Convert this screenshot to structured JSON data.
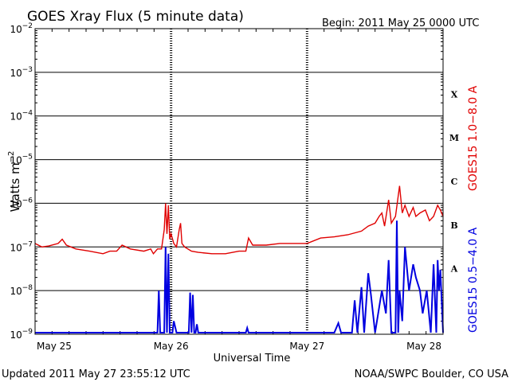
{
  "title": "GOES Xray Flux (5 minute data)",
  "begin_label": "Begin:  2011 May 25 0000 UTC",
  "footer_left": "Updated 2011 May 27 23:55:12 UTC",
  "footer_right": "NOAA/SWPC Boulder, CO USA",
  "colors": {
    "long": "#e00000",
    "short": "#0000e0",
    "axis": "#000000"
  },
  "chart_data": {
    "type": "line",
    "xlabel": "Universal Time",
    "ylabel_base": "Watts m",
    "ylabel_exp": "−2",
    "y_scale": "log",
    "ylim": [
      1e-09,
      0.01
    ],
    "y_ticks": [
      {
        "base": "10",
        "exp": "−2"
      },
      {
        "base": "10",
        "exp": "−3"
      },
      {
        "base": "10",
        "exp": "−4"
      },
      {
        "base": "10",
        "exp": "−5"
      },
      {
        "base": "10",
        "exp": "−6"
      },
      {
        "base": "10",
        "exp": "−7"
      },
      {
        "base": "10",
        "exp": "−8"
      },
      {
        "base": "10",
        "exp": "−9"
      }
    ],
    "xlim_days": [
      0,
      3
    ],
    "x_ticks": [
      "May 25",
      "May 26",
      "May 27",
      "May 28"
    ],
    "flare_classes": [
      "X",
      "M",
      "C",
      "B",
      "A"
    ],
    "grid": true,
    "series": [
      {
        "name": "GOES15 1.0−8.0 A",
        "color": "#e00000",
        "points": [
          [
            0.0,
            1.2e-07
          ],
          [
            0.05,
            1e-07
          ],
          [
            0.1,
            1.05e-07
          ],
          [
            0.17,
            1.2e-07
          ],
          [
            0.2,
            1.5e-07
          ],
          [
            0.23,
            1.1e-07
          ],
          [
            0.3,
            9e-08
          ],
          [
            0.4,
            8e-08
          ],
          [
            0.5,
            7e-08
          ],
          [
            0.55,
            8e-08
          ],
          [
            0.6,
            8e-08
          ],
          [
            0.64,
            1.1e-07
          ],
          [
            0.7,
            9e-08
          ],
          [
            0.8,
            8e-08
          ],
          [
            0.85,
            9e-08
          ],
          [
            0.87,
            7e-08
          ],
          [
            0.9,
            9e-08
          ],
          [
            0.93,
            9e-08
          ],
          [
            0.95,
            2.5e-07
          ],
          [
            0.96,
            1e-06
          ],
          [
            0.97,
            2e-07
          ],
          [
            0.98,
            9e-07
          ],
          [
            0.99,
            1.5e-07
          ],
          [
            1.0,
            2e-07
          ],
          [
            1.02,
            1.2e-07
          ],
          [
            1.04,
            1e-07
          ],
          [
            1.06,
            2.5e-07
          ],
          [
            1.07,
            3.5e-07
          ],
          [
            1.08,
            1.2e-07
          ],
          [
            1.1,
            1e-07
          ],
          [
            1.15,
            8e-08
          ],
          [
            1.2,
            7.5e-08
          ],
          [
            1.3,
            7e-08
          ],
          [
            1.4,
            7e-08
          ],
          [
            1.5,
            8e-08
          ],
          [
            1.55,
            8e-08
          ],
          [
            1.57,
            1.6e-07
          ],
          [
            1.6,
            1.1e-07
          ],
          [
            1.7,
            1.1e-07
          ],
          [
            1.8,
            1.2e-07
          ],
          [
            1.9,
            1.2e-07
          ],
          [
            2.0,
            1.2e-07
          ],
          [
            2.1,
            1.6e-07
          ],
          [
            2.2,
            1.7e-07
          ],
          [
            2.3,
            1.9e-07
          ],
          [
            2.4,
            2.3e-07
          ],
          [
            2.45,
            3e-07
          ],
          [
            2.5,
            3.5e-07
          ],
          [
            2.53,
            5e-07
          ],
          [
            2.55,
            6e-07
          ],
          [
            2.57,
            3e-07
          ],
          [
            2.6,
            1.2e-06
          ],
          [
            2.62,
            3.5e-07
          ],
          [
            2.65,
            5e-07
          ],
          [
            2.68,
            2.5e-06
          ],
          [
            2.7,
            6e-07
          ],
          [
            2.72,
            9e-07
          ],
          [
            2.75,
            5e-07
          ],
          [
            2.78,
            8e-07
          ],
          [
            2.8,
            5e-07
          ],
          [
            2.83,
            6e-07
          ],
          [
            2.87,
            7e-07
          ],
          [
            2.9,
            4e-07
          ],
          [
            2.93,
            5e-07
          ],
          [
            2.96,
            9e-07
          ],
          [
            2.98,
            7e-07
          ],
          [
            3.0,
            5e-07
          ]
        ]
      },
      {
        "name": "GOES15 0.5−4.0 A",
        "color": "#0000e0",
        "points": [
          [
            0.0,
            1e-09
          ],
          [
            0.9,
            1e-09
          ],
          [
            0.91,
            1e-08
          ],
          [
            0.92,
            1e-09
          ],
          [
            0.95,
            1e-09
          ],
          [
            0.96,
            1e-07
          ],
          [
            0.97,
            1e-09
          ],
          [
            0.98,
            7e-08
          ],
          [
            0.99,
            1e-09
          ],
          [
            1.01,
            1e-09
          ],
          [
            1.02,
            2e-09
          ],
          [
            1.04,
            1e-09
          ],
          [
            1.13,
            1e-09
          ],
          [
            1.14,
            9e-09
          ],
          [
            1.15,
            1e-09
          ],
          [
            1.16,
            8e-09
          ],
          [
            1.17,
            1e-09
          ],
          [
            1.18,
            1e-09
          ],
          [
            1.19,
            1.7e-09
          ],
          [
            1.2,
            1e-09
          ],
          [
            1.55,
            1e-09
          ],
          [
            1.56,
            1.4e-09
          ],
          [
            1.57,
            1e-09
          ],
          [
            2.2,
            1e-09
          ],
          [
            2.23,
            1.8e-09
          ],
          [
            2.25,
            1e-09
          ],
          [
            2.33,
            1e-09
          ],
          [
            2.35,
            6e-09
          ],
          [
            2.37,
            1e-09
          ],
          [
            2.4,
            1.2e-08
          ],
          [
            2.42,
            1e-09
          ],
          [
            2.45,
            2.5e-08
          ],
          [
            2.47,
            8e-09
          ],
          [
            2.5,
            1e-09
          ],
          [
            2.55,
            1e-08
          ],
          [
            2.58,
            3e-09
          ],
          [
            2.6,
            5e-08
          ],
          [
            2.62,
            1e-09
          ],
          [
            2.65,
            1e-09
          ],
          [
            2.66,
            4e-07
          ],
          [
            2.67,
            1e-09
          ],
          [
            2.68,
            1e-08
          ],
          [
            2.7,
            2e-09
          ],
          [
            2.72,
            1e-07
          ],
          [
            2.75,
            1e-08
          ],
          [
            2.78,
            4e-08
          ],
          [
            2.8,
            2e-08
          ],
          [
            2.83,
            1e-08
          ],
          [
            2.85,
            3e-09
          ],
          [
            2.88,
            1e-08
          ],
          [
            2.91,
            1e-09
          ],
          [
            2.93,
            4e-08
          ],
          [
            2.95,
            1e-09
          ],
          [
            2.96,
            5e-08
          ],
          [
            2.97,
            1e-08
          ],
          [
            2.98,
            3e-08
          ],
          [
            3.0,
            1e-09
          ]
        ]
      }
    ]
  }
}
